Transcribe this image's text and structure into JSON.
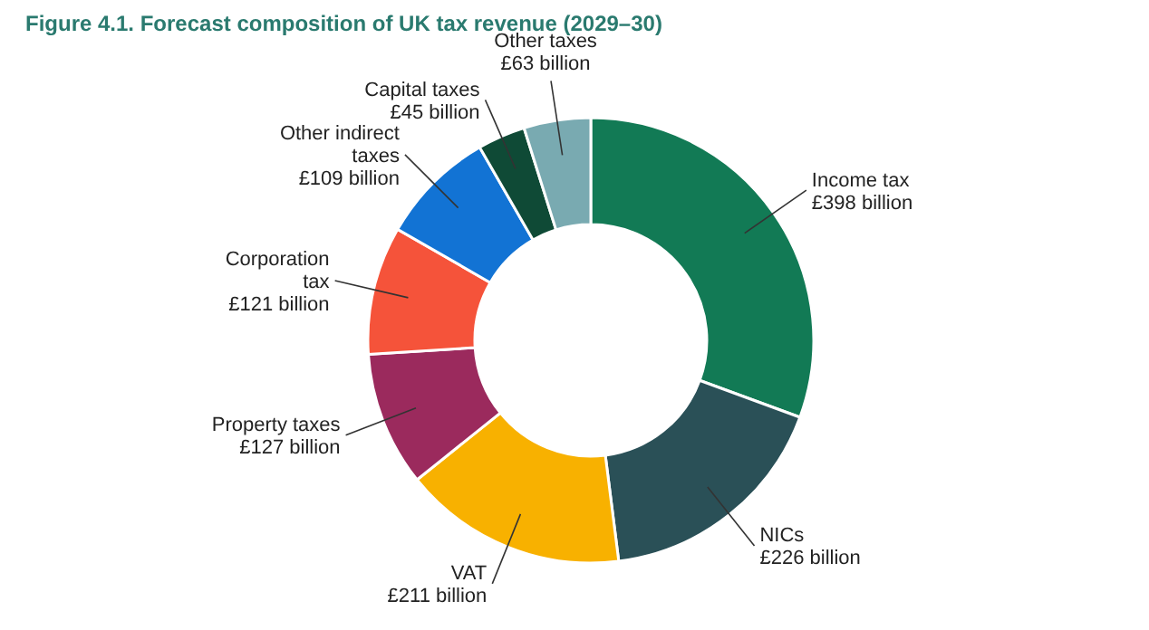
{
  "chart_data": {
    "type": "donut",
    "title": "Figure 4.1. Forecast composition of UK tax revenue (2029–30)",
    "categories": [
      "Income tax",
      "NICs",
      "VAT",
      "Property taxes",
      "Corporation tax",
      "Other indirect taxes",
      "Capital taxes",
      "Other taxes"
    ],
    "values": [
      398,
      226,
      211,
      127,
      121,
      109,
      45,
      63
    ],
    "value_labels": [
      "£398 billion",
      "£226 billion",
      "£211 billion",
      "£127 billion",
      "£121 billion",
      "£109 billion",
      "£45 billion",
      "£63 billion"
    ],
    "colors": [
      "#127a55",
      "#2a5057",
      "#f8b100",
      "#9b2a5d",
      "#f5533a",
      "#1273d4",
      "#0f4a36",
      "#79aab1"
    ]
  }
}
